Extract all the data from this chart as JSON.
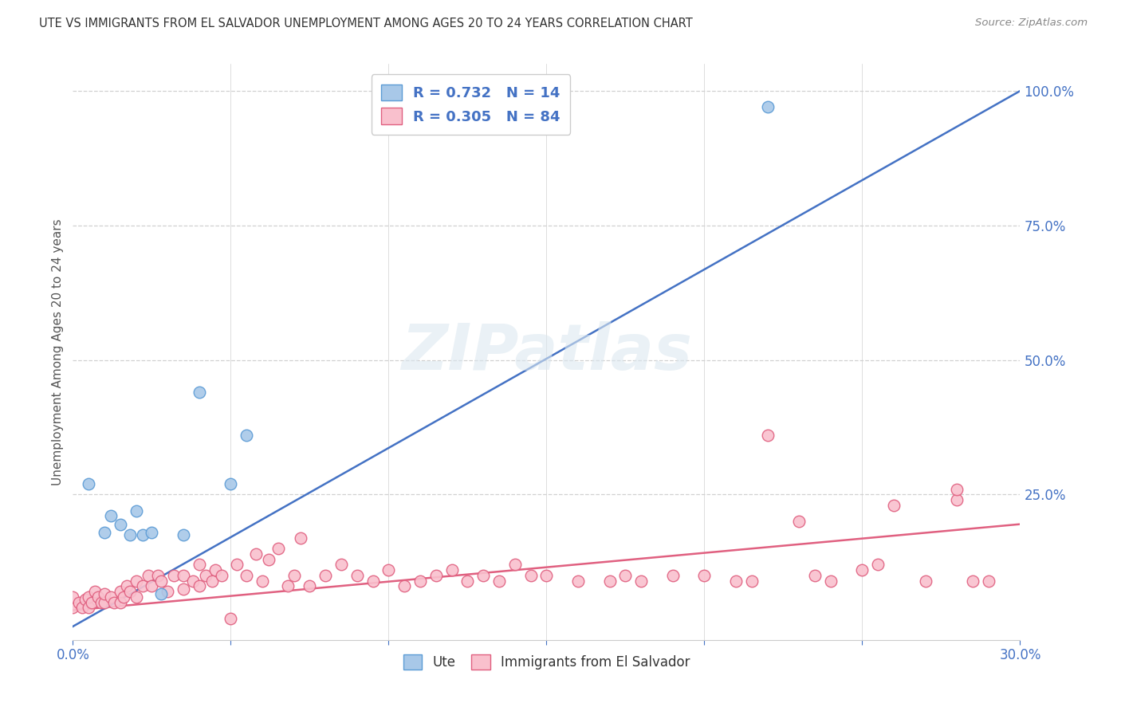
{
  "title": "UTE VS IMMIGRANTS FROM EL SALVADOR UNEMPLOYMENT AMONG AGES 20 TO 24 YEARS CORRELATION CHART",
  "source": "Source: ZipAtlas.com",
  "ylabel": "Unemployment Among Ages 20 to 24 years",
  "legend_blue_r": "0.732",
  "legend_blue_n": "14",
  "legend_pink_r": "0.305",
  "legend_pink_n": "84",
  "legend_label_blue": "Ute",
  "legend_label_pink": "Immigrants from El Salvador",
  "blue_scatter_color": "#a8c8e8",
  "blue_edge_color": "#5b9bd5",
  "pink_scatter_color": "#f9c0cd",
  "pink_edge_color": "#e06080",
  "blue_line_color": "#4472c4",
  "pink_line_color": "#e06080",
  "watermark": "ZIPatlas",
  "xlim": [
    0.0,
    0.3
  ],
  "ylim": [
    -0.02,
    1.05
  ],
  "blue_scatter_x": [
    0.005,
    0.01,
    0.012,
    0.015,
    0.018,
    0.02,
    0.022,
    0.025,
    0.028,
    0.035,
    0.04,
    0.05,
    0.055,
    0.22
  ],
  "blue_scatter_y": [
    0.27,
    0.18,
    0.21,
    0.195,
    0.175,
    0.22,
    0.175,
    0.18,
    0.065,
    0.175,
    0.44,
    0.27,
    0.36,
    0.97
  ],
  "blue_line_x": [
    0.0,
    0.3
  ],
  "blue_line_y": [
    0.005,
    1.0
  ],
  "pink_scatter_x": [
    0.0,
    0.0,
    0.002,
    0.003,
    0.004,
    0.005,
    0.005,
    0.006,
    0.007,
    0.008,
    0.009,
    0.01,
    0.01,
    0.012,
    0.013,
    0.015,
    0.015,
    0.016,
    0.017,
    0.018,
    0.02,
    0.02,
    0.022,
    0.024,
    0.025,
    0.027,
    0.028,
    0.03,
    0.032,
    0.035,
    0.035,
    0.038,
    0.04,
    0.04,
    0.042,
    0.044,
    0.045,
    0.047,
    0.05,
    0.052,
    0.055,
    0.058,
    0.06,
    0.062,
    0.065,
    0.068,
    0.07,
    0.072,
    0.075,
    0.08,
    0.085,
    0.09,
    0.095,
    0.1,
    0.105,
    0.11,
    0.115,
    0.12,
    0.125,
    0.13,
    0.135,
    0.14,
    0.145,
    0.15,
    0.16,
    0.17,
    0.175,
    0.18,
    0.19,
    0.2,
    0.21,
    0.215,
    0.22,
    0.23,
    0.235,
    0.24,
    0.25,
    0.255,
    0.26,
    0.27,
    0.28,
    0.28,
    0.285,
    0.29
  ],
  "pink_scatter_y": [
    0.04,
    0.06,
    0.05,
    0.04,
    0.055,
    0.04,
    0.06,
    0.05,
    0.07,
    0.06,
    0.05,
    0.05,
    0.065,
    0.06,
    0.05,
    0.05,
    0.07,
    0.06,
    0.08,
    0.07,
    0.06,
    0.09,
    0.08,
    0.1,
    0.08,
    0.1,
    0.09,
    0.07,
    0.1,
    0.075,
    0.1,
    0.09,
    0.08,
    0.12,
    0.1,
    0.09,
    0.11,
    0.1,
    0.02,
    0.12,
    0.1,
    0.14,
    0.09,
    0.13,
    0.15,
    0.08,
    0.1,
    0.17,
    0.08,
    0.1,
    0.12,
    0.1,
    0.09,
    0.11,
    0.08,
    0.09,
    0.1,
    0.11,
    0.09,
    0.1,
    0.09,
    0.12,
    0.1,
    0.1,
    0.09,
    0.09,
    0.1,
    0.09,
    0.1,
    0.1,
    0.09,
    0.09,
    0.36,
    0.2,
    0.1,
    0.09,
    0.11,
    0.12,
    0.23,
    0.09,
    0.24,
    0.26,
    0.09,
    0.09
  ],
  "pink_line_x": [
    0.0,
    0.3
  ],
  "pink_line_y": [
    0.035,
    0.195
  ],
  "grid_color": "#d0d0d0",
  "spine_color": "#cccccc",
  "tick_color": "#4472c4",
  "label_color": "#555555",
  "title_color": "#333333"
}
